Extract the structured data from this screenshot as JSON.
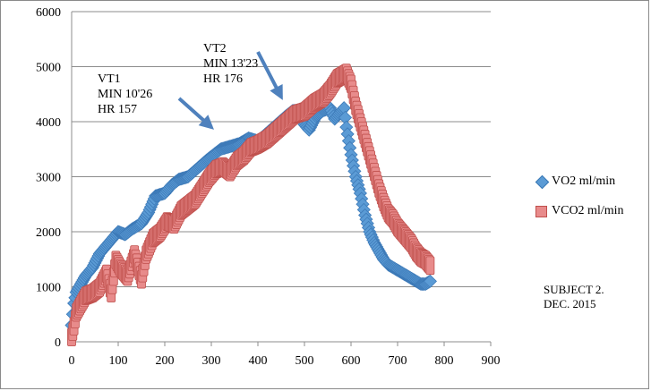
{
  "chart_data": {
    "type": "scatter",
    "title": "",
    "xlabel": "",
    "ylabel": "",
    "xlim": [
      0,
      900
    ],
    "ylim": [
      0,
      6000
    ],
    "x_ticks": [
      "0",
      "100",
      "200",
      "300",
      "400",
      "500",
      "600",
      "700",
      "800",
      "900"
    ],
    "y_ticks": [
      "0",
      "1000",
      "2000",
      "3000",
      "4000",
      "5000",
      "6000"
    ],
    "grid": "horizontal",
    "legend_position": "right",
    "series": [
      {
        "name": "VO2 ml/min",
        "marker": "diamond",
        "color": "#5b9bd5",
        "points": [
          [
            0,
            300
          ],
          [
            5,
            700
          ],
          [
            10,
            900
          ],
          [
            20,
            1050
          ],
          [
            30,
            1200
          ],
          [
            45,
            1350
          ],
          [
            60,
            1600
          ],
          [
            75,
            1750
          ],
          [
            90,
            1900
          ],
          [
            100,
            2000
          ],
          [
            115,
            1950
          ],
          [
            130,
            2050
          ],
          [
            150,
            2150
          ],
          [
            165,
            2350
          ],
          [
            180,
            2650
          ],
          [
            200,
            2700
          ],
          [
            215,
            2850
          ],
          [
            230,
            2950
          ],
          [
            250,
            3000
          ],
          [
            270,
            3150
          ],
          [
            290,
            3300
          ],
          [
            305,
            3400
          ],
          [
            320,
            3500
          ],
          [
            340,
            3550
          ],
          [
            360,
            3600
          ],
          [
            380,
            3700
          ],
          [
            400,
            3650
          ],
          [
            420,
            3800
          ],
          [
            440,
            3950
          ],
          [
            460,
            4100
          ],
          [
            475,
            4200
          ],
          [
            490,
            4200
          ],
          [
            500,
            3950
          ],
          [
            510,
            3850
          ],
          [
            525,
            4100
          ],
          [
            540,
            4200
          ],
          [
            555,
            4250
          ],
          [
            565,
            4050
          ],
          [
            575,
            4150
          ],
          [
            585,
            4250
          ],
          [
            590,
            3900
          ],
          [
            600,
            3400
          ],
          [
            610,
            3000
          ],
          [
            620,
            2700
          ],
          [
            630,
            2300
          ],
          [
            640,
            2000
          ],
          [
            650,
            1800
          ],
          [
            660,
            1650
          ],
          [
            670,
            1500
          ],
          [
            680,
            1400
          ],
          [
            690,
            1350
          ],
          [
            700,
            1300
          ],
          [
            710,
            1250
          ],
          [
            720,
            1200
          ],
          [
            730,
            1150
          ],
          [
            740,
            1100
          ],
          [
            750,
            1050
          ],
          [
            760,
            1050
          ],
          [
            770,
            1100
          ]
        ]
      },
      {
        "name": "VCO2 ml/min",
        "marker": "square",
        "color": "#e88b8b",
        "points": [
          [
            0,
            100
          ],
          [
            5,
            300
          ],
          [
            10,
            550
          ],
          [
            20,
            700
          ],
          [
            30,
            850
          ],
          [
            45,
            900
          ],
          [
            60,
            1000
          ],
          [
            75,
            1250
          ],
          [
            85,
            900
          ],
          [
            95,
            1500
          ],
          [
            105,
            1350
          ],
          [
            120,
            1200
          ],
          [
            135,
            1600
          ],
          [
            150,
            1150
          ],
          [
            160,
            1600
          ],
          [
            175,
            1900
          ],
          [
            190,
            2000
          ],
          [
            205,
            2200
          ],
          [
            220,
            2150
          ],
          [
            235,
            2400
          ],
          [
            250,
            2500
          ],
          [
            265,
            2600
          ],
          [
            280,
            2800
          ],
          [
            295,
            3000
          ],
          [
            310,
            3150
          ],
          [
            325,
            3200
          ],
          [
            340,
            3100
          ],
          [
            355,
            3300
          ],
          [
            370,
            3400
          ],
          [
            385,
            3550
          ],
          [
            400,
            3600
          ],
          [
            420,
            3700
          ],
          [
            440,
            3850
          ],
          [
            460,
            4000
          ],
          [
            480,
            4150
          ],
          [
            500,
            4200
          ],
          [
            520,
            4350
          ],
          [
            540,
            4450
          ],
          [
            555,
            4600
          ],
          [
            570,
            4800
          ],
          [
            580,
            4850
          ],
          [
            590,
            4900
          ],
          [
            600,
            4700
          ],
          [
            610,
            4300
          ],
          [
            620,
            4000
          ],
          [
            630,
            3700
          ],
          [
            640,
            3400
          ],
          [
            650,
            3100
          ],
          [
            660,
            2800
          ],
          [
            670,
            2550
          ],
          [
            680,
            2350
          ],
          [
            690,
            2250
          ],
          [
            700,
            2100
          ],
          [
            710,
            2000
          ],
          [
            720,
            1900
          ],
          [
            730,
            1800
          ],
          [
            740,
            1650
          ],
          [
            750,
            1550
          ],
          [
            760,
            1500
          ],
          [
            770,
            1400
          ]
        ]
      }
    ],
    "annotations": [
      {
        "lines": [
          "VT1",
          "MIN 10'26",
          "HR 157"
        ]
      },
      {
        "lines": [
          "VT2",
          "MIN 13'23",
          "HR 176"
        ]
      }
    ],
    "note_lines": [
      "SUBJECT 2.",
      "DEC. 2015"
    ]
  }
}
